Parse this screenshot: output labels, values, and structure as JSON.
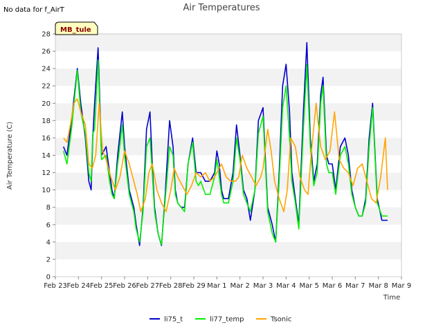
{
  "note": "No data for f_AirT",
  "site_badge": "MB_tule",
  "chart_data": {
    "type": "line",
    "title": "Air Temperatures",
    "xlabel": "Time",
    "ylabel": "Air Temperature (C)",
    "ylim": [
      0,
      28
    ],
    "yticks": [
      0,
      2,
      4,
      6,
      8,
      10,
      12,
      14,
      16,
      18,
      20,
      22,
      24,
      26,
      28
    ],
    "xlim": [
      0,
      15
    ],
    "xtick_labels": [
      "Feb 23",
      "Feb 24",
      "Feb 25",
      "Feb 26",
      "Feb 27",
      "Feb 28",
      "Feb 29",
      "Mar 1",
      "Mar 2",
      "Mar 3",
      "Mar 4",
      "Mar 5",
      "Mar 6",
      "Mar 7",
      "Mar 8",
      "Mar 9"
    ],
    "grid": "horizontal bands",
    "legend_position": "bottom-center",
    "x_unit_note": "x values are days after Feb 23 00:00",
    "series": [
      {
        "name": "li75_t",
        "color": "#0000cc",
        "x": [
          0.35,
          0.5,
          0.7,
          0.95,
          1.1,
          1.3,
          1.45,
          1.55,
          1.62,
          1.7,
          1.85,
          2.0,
          2.2,
          2.35,
          2.45,
          2.55,
          2.7,
          2.9,
          3.0,
          3.2,
          3.4,
          3.5,
          3.65,
          3.8,
          3.95,
          4.1,
          4.2,
          4.3,
          4.45,
          4.6,
          4.75,
          4.95,
          5.1,
          5.2,
          5.3,
          5.45,
          5.6,
          5.75,
          5.95,
          6.1,
          6.2,
          6.3,
          6.5,
          6.7,
          6.9,
          7.0,
          7.1,
          7.2,
          7.3,
          7.5,
          7.7,
          7.85,
          8.0,
          8.15,
          8.3,
          8.45,
          8.65,
          8.8,
          9.0,
          9.2,
          9.4,
          9.55,
          9.7,
          9.85,
          10.0,
          10.15,
          10.25,
          10.4,
          10.55,
          10.75,
          10.9,
          11.05,
          11.2,
          11.35,
          11.5,
          11.6,
          11.75,
          11.85,
          12.0,
          12.15,
          12.35,
          12.55,
          12.7,
          12.85,
          13.0,
          13.15,
          13.3,
          13.45,
          13.6,
          13.75,
          13.95,
          14.15,
          14.3,
          14.4
        ],
        "y": [
          15.0,
          14.0,
          18.0,
          24.0,
          20.0,
          16.0,
          11.0,
          10.0,
          16.0,
          20.0,
          26.4,
          14.0,
          15.0,
          12.0,
          10.0,
          9.0,
          14.0,
          19.0,
          15.0,
          10.0,
          8.0,
          6.0,
          3.6,
          8.0,
          17.0,
          19.0,
          13.0,
          8.0,
          5.0,
          3.6,
          9.0,
          18.0,
          15.0,
          10.0,
          8.5,
          8.0,
          8.0,
          13.0,
          16.0,
          12.0,
          12.0,
          12.0,
          11.0,
          11.0,
          12.0,
          14.5,
          13.0,
          10.0,
          9.0,
          9.0,
          12.0,
          17.5,
          14.0,
          10.0,
          9.0,
          6.5,
          10.0,
          18.0,
          19.5,
          8.0,
          6.0,
          4.0,
          12.0,
          22.0,
          24.5,
          19.0,
          12.0,
          9.0,
          6.0,
          19.0,
          27.0,
          16.0,
          11.0,
          13.0,
          21.0,
          23.0,
          14.0,
          13.0,
          13.0,
          10.0,
          15.0,
          16.0,
          14.0,
          10.0,
          8.0,
          7.0,
          7.0,
          9.0,
          16.0,
          20.0,
          9.0,
          6.5,
          6.5,
          6.5
        ]
      },
      {
        "name": "li77_temp",
        "color": "#00ee00",
        "x": [
          0.35,
          0.5,
          0.7,
          0.95,
          1.1,
          1.3,
          1.45,
          1.55,
          1.62,
          1.7,
          1.85,
          2.0,
          2.2,
          2.35,
          2.45,
          2.55,
          2.7,
          2.9,
          3.0,
          3.2,
          3.4,
          3.5,
          3.65,
          3.8,
          3.95,
          4.1,
          4.2,
          4.3,
          4.45,
          4.6,
          4.75,
          4.95,
          5.1,
          5.2,
          5.3,
          5.45,
          5.6,
          5.75,
          5.95,
          6.1,
          6.2,
          6.3,
          6.5,
          6.7,
          6.9,
          7.0,
          7.1,
          7.2,
          7.3,
          7.5,
          7.7,
          7.85,
          8.0,
          8.15,
          8.3,
          8.45,
          8.65,
          8.8,
          9.0,
          9.2,
          9.4,
          9.55,
          9.7,
          9.85,
          10.0,
          10.15,
          10.25,
          10.4,
          10.55,
          10.75,
          10.9,
          11.05,
          11.2,
          11.35,
          11.5,
          11.6,
          11.75,
          11.85,
          12.0,
          12.15,
          12.35,
          12.55,
          12.7,
          12.85,
          13.0,
          13.15,
          13.3,
          13.45,
          13.6,
          13.75,
          13.95,
          14.15,
          14.3,
          14.4
        ],
        "y": [
          14.5,
          13.0,
          17.0,
          23.8,
          19.0,
          16.5,
          12.0,
          11.0,
          16.5,
          17.0,
          25.0,
          13.5,
          14.0,
          11.0,
          9.5,
          9.0,
          13.0,
          17.5,
          14.0,
          9.5,
          7.5,
          5.5,
          4.0,
          7.5,
          15.0,
          16.0,
          12.0,
          7.5,
          5.0,
          3.7,
          8.5,
          15.0,
          14.0,
          9.5,
          8.5,
          8.0,
          7.5,
          13.0,
          15.5,
          11.0,
          10.5,
          11.0,
          9.5,
          9.5,
          11.5,
          13.5,
          11.5,
          9.5,
          8.5,
          8.5,
          11.0,
          16.0,
          13.5,
          9.5,
          8.5,
          7.5,
          10.0,
          16.5,
          18.5,
          7.5,
          5.0,
          4.0,
          11.0,
          19.5,
          22.0,
          16.0,
          11.0,
          8.5,
          5.5,
          17.0,
          24.5,
          15.0,
          10.5,
          12.0,
          20.0,
          22.0,
          13.0,
          12.0,
          12.0,
          9.5,
          14.0,
          15.0,
          13.0,
          9.5,
          8.0,
          7.0,
          7.0,
          8.5,
          15.0,
          19.5,
          8.5,
          7.0,
          7.0,
          7.0
        ]
      },
      {
        "name": "Tsonic",
        "color": "#ffa500",
        "x": [
          0.35,
          0.5,
          0.65,
          0.8,
          0.95,
          1.1,
          1.3,
          1.45,
          1.6,
          1.75,
          1.9,
          2.05,
          2.2,
          2.4,
          2.6,
          2.8,
          3.0,
          3.2,
          3.4,
          3.55,
          3.7,
          3.9,
          4.05,
          4.2,
          4.4,
          4.6,
          4.8,
          5.0,
          5.15,
          5.3,
          5.5,
          5.7,
          5.9,
          6.1,
          6.3,
          6.5,
          6.7,
          6.9,
          7.0,
          7.2,
          7.4,
          7.6,
          7.8,
          7.95,
          8.1,
          8.3,
          8.5,
          8.7,
          8.9,
          9.0,
          9.2,
          9.35,
          9.5,
          9.7,
          9.9,
          10.05,
          10.2,
          10.4,
          10.6,
          10.8,
          10.95,
          11.1,
          11.3,
          11.5,
          11.7,
          11.9,
          12.1,
          12.3,
          12.5,
          12.7,
          12.9,
          13.1,
          13.3,
          13.5,
          13.7,
          13.9,
          14.1,
          14.3,
          14.4
        ],
        "y": [
          16.0,
          15.5,
          17.5,
          20.0,
          20.5,
          19.0,
          17.5,
          13.0,
          12.5,
          14.0,
          20.0,
          14.5,
          13.5,
          11.5,
          10.0,
          11.5,
          14.5,
          13.0,
          11.0,
          9.5,
          7.5,
          9.0,
          12.0,
          13.0,
          10.0,
          8.5,
          7.5,
          10.0,
          12.5,
          11.5,
          10.5,
          9.5,
          10.5,
          12.0,
          11.5,
          12.0,
          11.0,
          11.5,
          12.0,
          13.0,
          11.5,
          11.0,
          11.0,
          11.5,
          14.0,
          12.5,
          11.5,
          10.5,
          11.5,
          12.5,
          17.0,
          14.5,
          11.0,
          9.0,
          7.5,
          10.0,
          16.0,
          15.0,
          11.5,
          10.0,
          9.5,
          14.5,
          20.0,
          15.0,
          13.5,
          14.5,
          19.0,
          13.5,
          12.5,
          12.0,
          10.5,
          12.5,
          13.0,
          11.0,
          9.0,
          8.5,
          11.5,
          16.0,
          10.0
        ]
      }
    ]
  }
}
